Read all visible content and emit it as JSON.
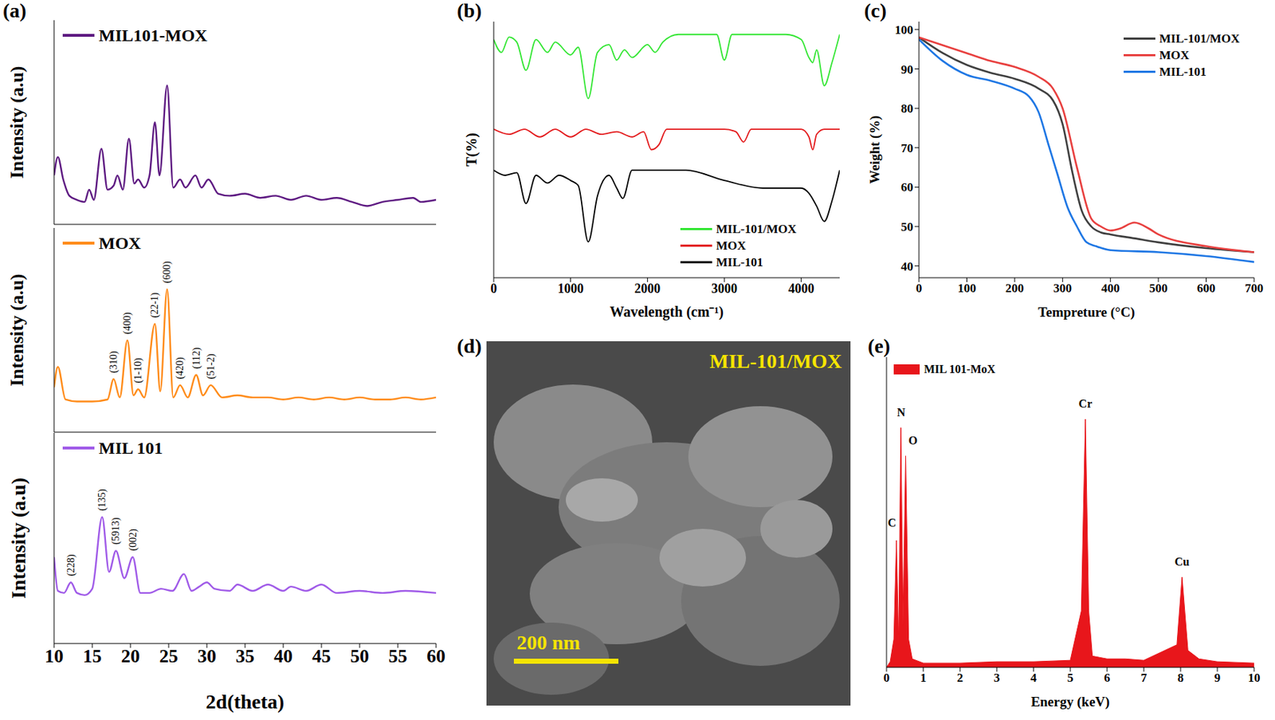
{
  "chart_data": [
    {
      "panel": "(a)",
      "type": "line",
      "ylabel": "Intensity (a.u)",
      "xlim": [
        10,
        60
      ],
      "ylim": [
        0,
        100
      ],
      "tick_labels": false,
      "legend": "upper left",
      "series": [
        {
          "name": "MIL101-MOX",
          "color": "#5e1a82",
          "x": [
            10,
            10.5,
            11.2,
            12,
            13,
            14,
            14.6,
            15.2,
            16.2,
            17,
            17.8,
            18.3,
            19,
            19.8,
            20.5,
            21,
            21.8,
            22.5,
            23.2,
            23.8,
            24.8,
            25.6,
            26.5,
            27.2,
            28.5,
            29.3,
            30.2,
            31.5,
            33,
            35,
            37,
            39,
            41,
            43,
            45,
            47,
            49,
            51,
            53,
            55,
            57,
            58,
            60
          ],
          "values": [
            24,
            33,
            22,
            14,
            12,
            11,
            17,
            12,
            37,
            17,
            19,
            24,
            17,
            42,
            20,
            22,
            18,
            24,
            50,
            24,
            68,
            18,
            22,
            18,
            24,
            18,
            22,
            15,
            14,
            15,
            13,
            14,
            12,
            14,
            12,
            13,
            11,
            9,
            11,
            12,
            13,
            11,
            12
          ]
        }
      ]
    },
    {
      "type": "line",
      "ylabel": "Intensity (a.u)",
      "xlim": [
        10,
        60
      ],
      "ylim": [
        0,
        100
      ],
      "tick_labels": false,
      "legend": "upper left",
      "series": [
        {
          "name": "MOX",
          "color": "#ff8c1a",
          "x": [
            10,
            10.5,
            11.5,
            13,
            15,
            17,
            17.8,
            18.6,
            19.6,
            20.4,
            21,
            21.8,
            23.2,
            23.9,
            24.8,
            25.6,
            26.5,
            27.5,
            28.6,
            29.5,
            30.5,
            32,
            34,
            36,
            38,
            40,
            42,
            44,
            46,
            48,
            50,
            52,
            54,
            56,
            58,
            60
          ],
          "values": [
            22,
            32,
            16,
            15,
            15,
            16,
            26,
            17,
            45,
            18,
            21,
            17,
            53,
            20,
            70,
            17,
            23,
            17,
            28,
            18,
            23,
            17,
            18,
            17,
            17,
            16,
            17,
            16,
            17,
            16,
            17,
            16,
            16,
            17,
            16,
            17
          ]
        }
      ],
      "annotations": [
        {
          "text": "(310)",
          "x": 17.8,
          "y": 29
        },
        {
          "text": "(400)",
          "x": 19.6,
          "y": 48
        },
        {
          "text": "(1-10)",
          "x": 21,
          "y": 24
        },
        {
          "text": "(22-1)",
          "x": 23.2,
          "y": 56
        },
        {
          "text": "(600)",
          "x": 24.8,
          "y": 73
        },
        {
          "text": "(420)",
          "x": 26.5,
          "y": 26
        },
        {
          "text": "(112)",
          "x": 28.6,
          "y": 31
        },
        {
          "text": "(51-2)",
          "x": 30.5,
          "y": 26
        }
      ]
    },
    {
      "type": "line",
      "xlabel": "2d(theta)",
      "ylabel": "Intensity (a.u)",
      "xlim": [
        10,
        60
      ],
      "xticks": [
        10,
        15,
        20,
        25,
        30,
        35,
        40,
        45,
        50,
        55,
        60
      ],
      "ylim": [
        0,
        100
      ],
      "tick_labels": "x",
      "legend": "upper left",
      "series": [
        {
          "name": "MIL 101",
          "color": "#a05be8",
          "x": [
            10,
            10.5,
            11.3,
            12.2,
            13,
            14,
            15,
            16.3,
            17.2,
            18.1,
            19.2,
            20.3,
            21.3,
            22.5,
            24,
            25.5,
            27,
            28,
            29,
            30,
            31,
            33,
            34,
            36,
            38,
            40,
            41,
            43,
            45,
            47,
            50,
            53,
            56,
            60
          ],
          "values": [
            41,
            25,
            24,
            29,
            24,
            23,
            26,
            60,
            34,
            44,
            31,
            41,
            24,
            24,
            26,
            25,
            33,
            25,
            27,
            29,
            26,
            25,
            28,
            25,
            28,
            25,
            27,
            25,
            28,
            24,
            25,
            24,
            25,
            24
          ]
        }
      ],
      "annotations": [
        {
          "text": "(228)",
          "x": 12.2,
          "y": 32
        },
        {
          "text": "(135)",
          "x": 16.3,
          "y": 63
        },
        {
          "text": "(5913)",
          "x": 18.1,
          "y": 47
        },
        {
          "text": "(002)",
          "x": 20.3,
          "y": 44
        }
      ]
    },
    {
      "panel": "(b)",
      "type": "line",
      "xlabel": "Wavelength (cm⁻¹)",
      "ylabel": "T(%)",
      "xlim": [
        0,
        4500
      ],
      "xticks": [
        0,
        1000,
        2000,
        3000,
        4000
      ],
      "ylim": [
        0,
        100
      ],
      "tick_labels": "x",
      "legend": "lower right",
      "series": [
        {
          "name": "MIL-101/MOX",
          "color": "#33e633",
          "x": [
            0,
            100,
            200,
            300,
            420,
            550,
            700,
            800,
            1000,
            1100,
            1230,
            1350,
            1500,
            1600,
            1700,
            1800,
            2000,
            2100,
            2200,
            2400,
            2900,
            3000,
            3100,
            3800,
            4000,
            4100,
            4150,
            4200,
            4300,
            4400,
            4500
          ],
          "values": [
            93,
            88,
            94,
            92,
            81,
            93,
            88,
            92,
            87,
            90,
            70,
            88,
            91,
            85,
            89,
            86,
            91,
            88,
            92,
            95,
            95,
            85,
            95,
            95,
            93,
            86,
            84,
            89,
            75,
            84,
            95
          ]
        },
        {
          "name": "MOX",
          "color": "#e31a1c",
          "x": [
            0,
            200,
            400,
            600,
            800,
            1000,
            1200,
            1400,
            1600,
            1800,
            1950,
            2050,
            2150,
            2250,
            2500,
            3000,
            3150,
            3250,
            3350,
            3600,
            4000,
            4100,
            4150,
            4200,
            4300,
            4500
          ],
          "values": [
            58,
            56,
            58,
            55,
            58,
            55,
            58,
            56,
            57,
            55,
            57,
            50,
            52,
            58,
            58,
            58,
            57,
            53,
            58,
            58,
            58,
            55,
            50,
            56,
            58,
            58
          ]
        },
        {
          "name": "MIL-101",
          "color": "#000000",
          "x": [
            0,
            150,
            300,
            420,
            550,
            700,
            850,
            1000,
            1100,
            1230,
            1350,
            1500,
            1600,
            1680,
            1800,
            2000,
            2500,
            3000,
            3500,
            4000,
            4100,
            4200,
            4300,
            4400,
            4500
          ],
          "values": [
            42,
            40,
            41,
            29,
            40,
            37,
            40,
            38,
            36,
            14,
            32,
            40,
            35,
            31,
            42,
            42,
            42,
            38,
            35,
            35,
            33,
            28,
            22,
            30,
            42
          ]
        }
      ]
    },
    {
      "panel": "(c)",
      "type": "line",
      "xlabel": "Tempreture (°C)",
      "ylabel": "Weight (%)",
      "xlim": [
        0,
        700
      ],
      "xticks": [
        0,
        100,
        200,
        300,
        400,
        500,
        600,
        700
      ],
      "ylim": [
        37,
        102
      ],
      "yticks": [
        40,
        50,
        60,
        70,
        80,
        90,
        100
      ],
      "legend": "upper right",
      "series": [
        {
          "name": "MIL-101/MOX",
          "color": "#404040",
          "x": [
            0,
            50,
            100,
            150,
            200,
            250,
            280,
            300,
            320,
            340,
            360,
            380,
            400,
            450,
            500,
            600,
            700
          ],
          "values": [
            98,
            94,
            91,
            89,
            87.5,
            85,
            82,
            76,
            64,
            54,
            50,
            48.5,
            48,
            47,
            46,
            44.5,
            43.5
          ]
        },
        {
          "name": "MOX",
          "color": "#e8403f",
          "x": [
            0,
            50,
            100,
            150,
            200,
            250,
            280,
            300,
            330,
            360,
            380,
            400,
            420,
            450,
            480,
            500,
            600,
            700
          ],
          "values": [
            98,
            96,
            94,
            92,
            90.5,
            88,
            85,
            80,
            65,
            52,
            50,
            49,
            49.5,
            51,
            49.5,
            48,
            45,
            43.5
          ]
        },
        {
          "name": "MIL-101",
          "color": "#1f77e4",
          "x": [
            0,
            50,
            100,
            150,
            200,
            230,
            250,
            270,
            290,
            310,
            330,
            350,
            370,
            400,
            500,
            600,
            700
          ],
          "values": [
            97.5,
            92,
            88.5,
            87,
            85,
            83,
            79,
            71,
            63,
            55,
            50,
            46,
            45,
            44,
            43.5,
            42.5,
            41
          ]
        }
      ]
    },
    {
      "panel": "(d)",
      "type": "image",
      "title": "MIL-101/MOX",
      "annotations": [
        {
          "text": "200 nm"
        }
      ]
    },
    {
      "panel": "(e)",
      "type": "area",
      "xlabel": "Energy (keV)",
      "xlim": [
        0,
        10
      ],
      "xticks": [
        0,
        1,
        2,
        3,
        4,
        5,
        6,
        7,
        8,
        9,
        10
      ],
      "ylim": [
        0,
        110
      ],
      "tick_labels": "x",
      "legend": "upper left",
      "series": [
        {
          "name": "MIL 101-MoX",
          "color": "#e8161b",
          "x": [
            0,
            0.1,
            0.2,
            0.27,
            0.33,
            0.39,
            0.45,
            0.52,
            0.6,
            0.7,
            1,
            2,
            3,
            4,
            5,
            5.3,
            5.41,
            5.5,
            5.6,
            6,
            6.5,
            7,
            7.9,
            8.04,
            8.2,
            8.5,
            9,
            10
          ],
          "values": [
            0,
            2,
            10,
            45,
            8,
            85,
            15,
            75,
            10,
            3,
            1.5,
            1.5,
            2,
            2,
            2.5,
            20,
            88,
            20,
            4,
            3,
            3,
            2.5,
            8,
            32,
            6,
            3,
            2,
            1.5
          ]
        }
      ],
      "annotations": [
        {
          "text": "C",
          "x": 0.15,
          "y": 50
        },
        {
          "text": "N",
          "x": 0.4,
          "y": 89
        },
        {
          "text": "O",
          "x": 0.72,
          "y": 79
        },
        {
          "text": "Cr",
          "x": 5.41,
          "y": 92
        },
        {
          "text": "Cu",
          "x": 8.04,
          "y": 36
        }
      ]
    }
  ]
}
